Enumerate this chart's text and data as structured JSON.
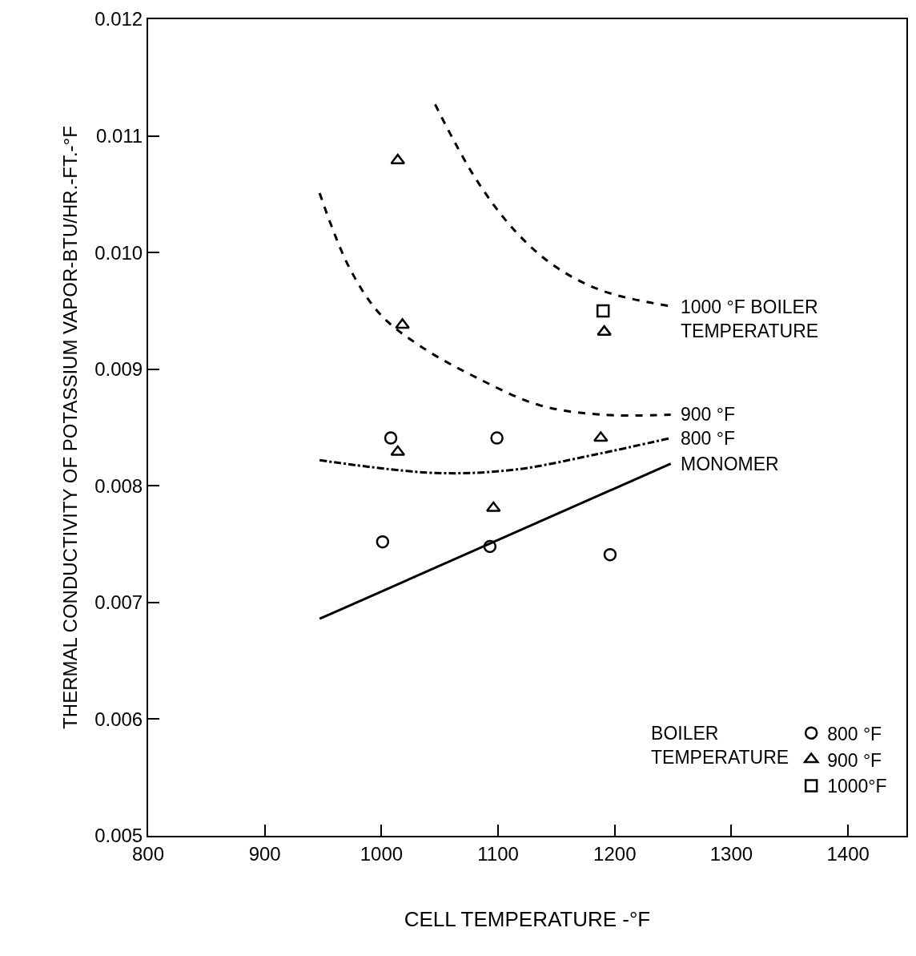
{
  "chart_data": {
    "type": "scatter",
    "xlabel": "CELL TEMPERATURE -°F",
    "ylabel": "THERMAL CONDUCTIVITY OF POTASSIUM VAPOR-BTU/HR.-FT.-°F",
    "xlim": [
      800,
      1450
    ],
    "xticks": [
      800,
      900,
      1000,
      1100,
      1200,
      1300,
      1400
    ],
    "ylim": [
      0.005,
      0.012
    ],
    "yticks": [
      0.005,
      0.006,
      0.007,
      0.008,
      0.009,
      {
        "value": 0.01,
        "label": "0.010"
      },
      0.011,
      0.012
    ],
    "legend": "bottom right",
    "legend_title": "BOILER\nTEMPERATURE",
    "series": [
      {
        "name": "800 °F",
        "marker": "circle",
        "color": "#000000",
        "x": [
          1008,
          1001,
          1099,
          1093,
          1196
        ],
        "values": [
          0.00841,
          0.00752,
          0.00841,
          0.00748,
          0.00741
        ]
      },
      {
        "name": "900 °F",
        "marker": "triangle",
        "color": "#000000",
        "x": [
          1014,
          1018,
          1014,
          1096,
          1188,
          1191
        ],
        "values": [
          0.01079,
          0.00938,
          0.00829,
          0.00781,
          0.00841,
          0.00932
        ]
      },
      {
        "name": "1000°F",
        "marker": "square",
        "color": "#000000",
        "x": [
          1190
        ],
        "values": [
          0.0095
        ]
      },
      {
        "name": "1000 °F BOILER\nTEMPERATURE",
        "type": "line",
        "line_style": "dashed",
        "color": "#000000",
        "x": [
          1046,
          1081,
          1115,
          1149,
          1190,
          1248
        ],
        "values": [
          0.01127,
          0.01063,
          0.01018,
          0.00988,
          0.00967,
          0.00954
        ]
      },
      {
        "name": "900 °F",
        "type": "line",
        "line_style": "dashed",
        "color": "#000000",
        "x": [
          947,
          972,
          999,
          1033,
          1081,
          1136,
          1190,
          1248
        ],
        "values": [
          0.01051,
          0.00988,
          0.00947,
          0.0092,
          0.00893,
          0.00869,
          0.00861,
          0.00861
        ]
      },
      {
        "name": "800 °F",
        "type": "line",
        "line_style": "dashdot",
        "color": "#000000",
        "x": [
          947,
          1047,
          1115,
          1184,
          1248
        ],
        "values": [
          0.00822,
          0.00811,
          0.00814,
          0.00827,
          0.00841
        ]
      },
      {
        "name": "MONOMER",
        "type": "line",
        "line_style": "solid",
        "color": "#000000",
        "x": [
          947,
          1248
        ],
        "values": [
          0.00686,
          0.00819
        ]
      }
    ]
  }
}
